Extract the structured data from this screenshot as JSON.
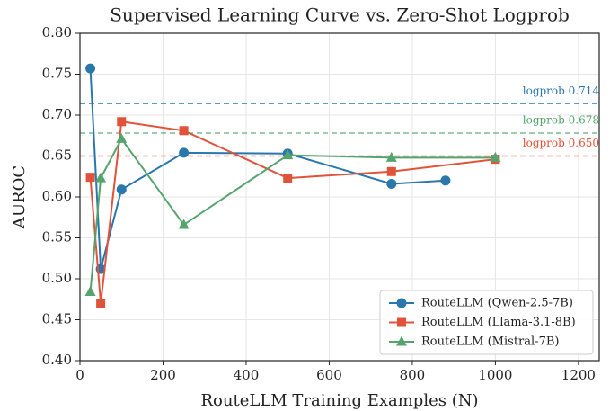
{
  "chart_data": {
    "type": "line",
    "title": "Supervised Learning Curve vs. Zero-Shot Logprob",
    "x_label": "RouteLLM Training Examples (N)",
    "y_label": "AUROC",
    "xlim": [
      0,
      1250
    ],
    "ylim": [
      0.4,
      0.8
    ],
    "xticks": [
      0,
      200,
      400,
      600,
      800,
      1000,
      1200
    ],
    "yticks": [
      {
        "value": 0.4,
        "label": "0.40"
      },
      {
        "value": 0.45,
        "label": "0.45"
      },
      {
        "value": 0.5,
        "label": "0.50"
      },
      {
        "value": 0.55,
        "label": "0.55"
      },
      {
        "value": 0.6,
        "label": "0.60"
      },
      {
        "value": 0.65,
        "label": "0.65"
      },
      {
        "value": 0.7,
        "label": "0.70"
      },
      {
        "value": 0.75,
        "label": "0.75"
      },
      {
        "value": 0.8,
        "label": "0.80"
      }
    ],
    "grid": true,
    "legend": "lower right",
    "series": [
      {
        "name": "RouteLLM (Qwen-2.5-7B)",
        "color": "#2a77ac",
        "marker": "circle",
        "x": [
          25,
          50,
          100,
          250,
          500,
          750,
          880
        ],
        "values": [
          0.757,
          0.512,
          0.609,
          0.654,
          0.653,
          0.616,
          0.62
        ]
      },
      {
        "name": "RouteLLM (Llama-3.1-8B)",
        "color": "#e0533a",
        "marker": "square",
        "x": [
          25,
          50,
          100,
          250,
          500,
          750,
          1000
        ],
        "values": [
          0.624,
          0.47,
          0.692,
          0.681,
          0.623,
          0.631,
          0.646
        ]
      },
      {
        "name": "RouteLLM (Mistral-7B)",
        "color": "#55a46e",
        "marker": "triangle",
        "x": [
          25,
          50,
          100,
          250,
          500,
          750,
          1000
        ],
        "values": [
          0.484,
          0.623,
          0.671,
          0.566,
          0.651,
          0.648,
          0.648
        ]
      }
    ],
    "hlines": [
      {
        "value": 0.714,
        "label": "logprob 0.714",
        "color": "#2a77ac"
      },
      {
        "value": 0.678,
        "label": "logprob 0.678",
        "color": "#55a46e"
      },
      {
        "value": 0.65,
        "label": "logprob 0.650",
        "color": "#e0533a"
      }
    ]
  }
}
